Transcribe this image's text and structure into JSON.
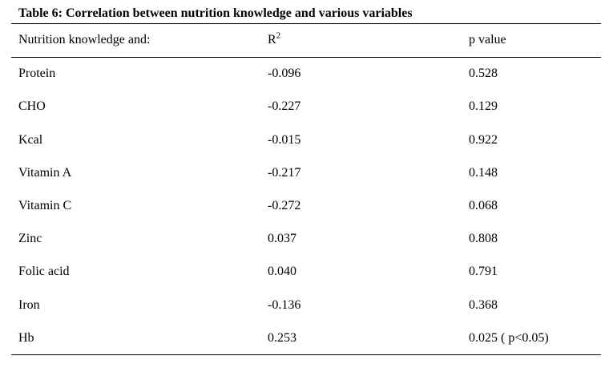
{
  "table": {
    "caption": "Table 6: Correlation between nutrition knowledge and various variables",
    "headers": {
      "variable": "Nutrition knowledge and:",
      "r_base": "R",
      "r_sup": "2",
      "p": "p value"
    },
    "rows": [
      {
        "variable": "Protein",
        "r2": "-0.096",
        "p": "0.528"
      },
      {
        "variable": "CHO",
        "r2": "-0.227",
        "p": "0.129"
      },
      {
        "variable": "Kcal",
        "r2": "-0.015",
        "p": "0.922"
      },
      {
        "variable": "Vitamin A",
        "r2": "-0.217",
        "p": "0.148"
      },
      {
        "variable": "Vitamin C",
        "r2": "-0.272",
        "p": "0.068"
      },
      {
        "variable": "Zinc",
        "r2": "0.037",
        "p": "0.808"
      },
      {
        "variable": "Folic acid",
        "r2": "0.040",
        "p": "0.791"
      },
      {
        "variable": "Iron",
        "r2": "-0.136",
        "p": "0.368"
      },
      {
        "variable": "Hb",
        "r2": "0.253",
        "p": "0.025 ( p<0.05)"
      }
    ]
  }
}
